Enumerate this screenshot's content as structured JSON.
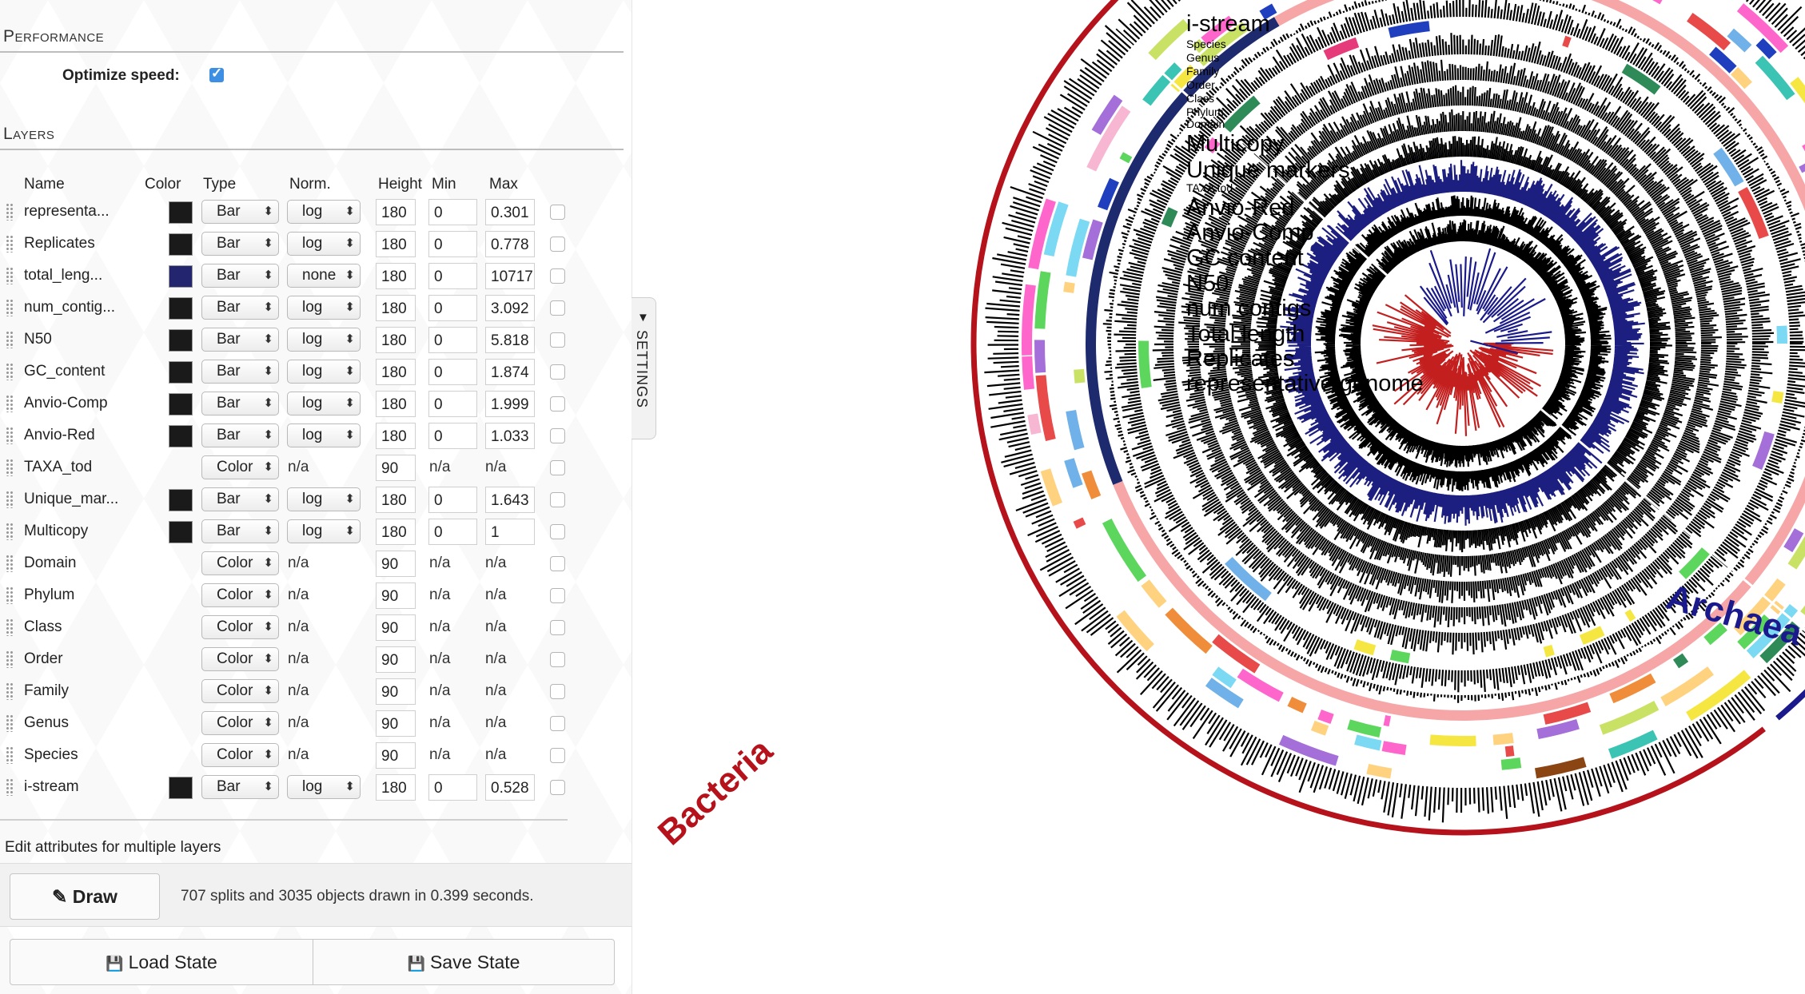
{
  "settings": {
    "performance_title": "Performance",
    "optimize_label": "Optimize speed:",
    "optimize_checked": true,
    "layers_title": "Layers",
    "tab_label": "SETTINGS",
    "columns": {
      "name": "Name",
      "color": "Color",
      "type": "Type",
      "norm": "Norm.",
      "height": "Height",
      "min": "Min",
      "max": "Max"
    },
    "layers": [
      {
        "name": "representa...",
        "color": "#1a1a1a",
        "type": "Bar",
        "norm": "log",
        "height": "180",
        "min": "0",
        "max": "0.301"
      },
      {
        "name": "Replicates",
        "color": "#1a1a1a",
        "type": "Bar",
        "norm": "log",
        "height": "180",
        "min": "0",
        "max": "0.778"
      },
      {
        "name": "total_leng...",
        "color": "#23256e",
        "type": "Bar",
        "norm": "none",
        "height": "180",
        "min": "0",
        "max": "10717"
      },
      {
        "name": "num_contig...",
        "color": "#1a1a1a",
        "type": "Bar",
        "norm": "log",
        "height": "180",
        "min": "0",
        "max": "3.092"
      },
      {
        "name": "N50",
        "color": "#1a1a1a",
        "type": "Bar",
        "norm": "log",
        "height": "180",
        "min": "0",
        "max": "5.818"
      },
      {
        "name": "GC_content",
        "color": "#1a1a1a",
        "type": "Bar",
        "norm": "log",
        "height": "180",
        "min": "0",
        "max": "1.874"
      },
      {
        "name": "Anvio-Comp",
        "color": "#1a1a1a",
        "type": "Bar",
        "norm": "log",
        "height": "180",
        "min": "0",
        "max": "1.999"
      },
      {
        "name": "Anvio-Red",
        "color": "#1a1a1a",
        "type": "Bar",
        "norm": "log",
        "height": "180",
        "min": "0",
        "max": "1.033"
      },
      {
        "name": "TAXA_tod",
        "color": null,
        "type": "Color",
        "norm": "n/a",
        "height": "90",
        "min": "n/a",
        "max": "n/a"
      },
      {
        "name": "Unique_mar...",
        "color": "#1a1a1a",
        "type": "Bar",
        "norm": "log",
        "height": "180",
        "min": "0",
        "max": "1.643"
      },
      {
        "name": "Multicopy",
        "color": "#1a1a1a",
        "type": "Bar",
        "norm": "log",
        "height": "180",
        "min": "0",
        "max": "1"
      },
      {
        "name": "Domain",
        "color": null,
        "type": "Color",
        "norm": "n/a",
        "height": "90",
        "min": "n/a",
        "max": "n/a"
      },
      {
        "name": "Phylum",
        "color": null,
        "type": "Color",
        "norm": "n/a",
        "height": "90",
        "min": "n/a",
        "max": "n/a"
      },
      {
        "name": "Class",
        "color": null,
        "type": "Color",
        "norm": "n/a",
        "height": "90",
        "min": "n/a",
        "max": "n/a"
      },
      {
        "name": "Order",
        "color": null,
        "type": "Color",
        "norm": "n/a",
        "height": "90",
        "min": "n/a",
        "max": "n/a"
      },
      {
        "name": "Family",
        "color": null,
        "type": "Color",
        "norm": "n/a",
        "height": "90",
        "min": "n/a",
        "max": "n/a"
      },
      {
        "name": "Genus",
        "color": null,
        "type": "Color",
        "norm": "n/a",
        "height": "90",
        "min": "n/a",
        "max": "n/a"
      },
      {
        "name": "Species",
        "color": null,
        "type": "Color",
        "norm": "n/a",
        "height": "90",
        "min": "n/a",
        "max": "n/a"
      },
      {
        "name": "i-stream",
        "color": "#1a1a1a",
        "type": "Bar",
        "norm": "log",
        "height": "180",
        "min": "0",
        "max": "0.528"
      }
    ],
    "multi_edit_label": "Edit attributes for multiple layers",
    "draw_label": "Draw",
    "draw_status": "707 splits and 3035 objects drawn in 0.399 seconds.",
    "load_state_label": "Load State",
    "save_state_label": "Save State"
  },
  "tree": {
    "layer_labels": [
      {
        "text": "i-stream",
        "size": "large"
      },
      {
        "text": "Species",
        "size": "small"
      },
      {
        "text": "Genus",
        "size": "small"
      },
      {
        "text": "Family",
        "size": "small"
      },
      {
        "text": "Order",
        "size": "small"
      },
      {
        "text": "Class",
        "size": "small"
      },
      {
        "text": "Phylum",
        "size": "small"
      },
      {
        "text": "Domain",
        "size": "small"
      },
      {
        "text": "Multicopy",
        "size": "large"
      },
      {
        "text": "Unique markers",
        "size": "large"
      },
      {
        "text": "TAXA tod",
        "size": "small"
      },
      {
        "text": "Anvio-Red",
        "size": "large"
      },
      {
        "text": "Anvio-Comp",
        "size": "large"
      },
      {
        "text": "GC content",
        "size": "large"
      },
      {
        "text": "N50",
        "size": "large"
      },
      {
        "text": "num contigs",
        "size": "large"
      },
      {
        "text": "Total length",
        "size": "large",
        "color": "#23256e"
      },
      {
        "text": "Replicates",
        "size": "large"
      },
      {
        "text": "representative genome",
        "size": "large"
      }
    ],
    "clades": [
      {
        "label": "Bacteria",
        "color": "#b5121b"
      },
      {
        "label": "Archaea",
        "color": "#1a1a8c"
      }
    ]
  }
}
